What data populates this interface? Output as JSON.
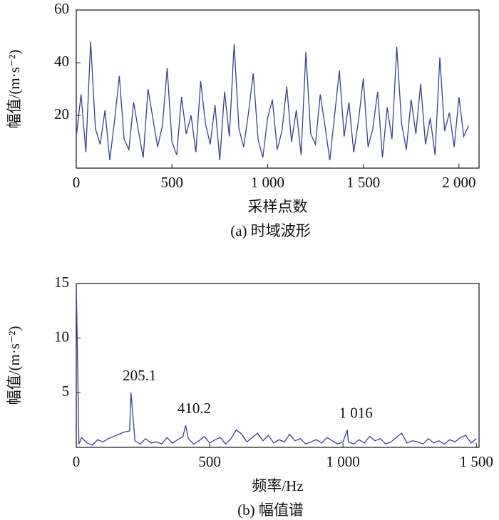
{
  "chart_data": [
    {
      "type": "line",
      "y_label": "幅值/(m·s⁻²)",
      "x_label": "采样点数",
      "caption": "(a) 时域波形",
      "x": [
        0,
        25,
        50,
        75,
        100,
        125,
        150,
        175,
        200,
        225,
        250,
        275,
        300,
        325,
        350,
        375,
        400,
        425,
        450,
        475,
        500,
        525,
        550,
        575,
        600,
        625,
        650,
        675,
        700,
        725,
        750,
        775,
        800,
        825,
        850,
        875,
        900,
        925,
        950,
        975,
        1000,
        1025,
        1050,
        1075,
        1100,
        1125,
        1150,
        1175,
        1200,
        1225,
        1250,
        1275,
        1300,
        1325,
        1350,
        1375,
        1400,
        1425,
        1450,
        1475,
        1500,
        1525,
        1550,
        1575,
        1600,
        1625,
        1650,
        1675,
        1700,
        1725,
        1750,
        1775,
        1800,
        1825,
        1850,
        1875,
        1900,
        1925,
        1950,
        1975,
        2000,
        2025,
        2050
      ],
      "series": [
        {
          "color": "#3b3f8f",
          "values": [
            12,
            28,
            6,
            48,
            15,
            9,
            22,
            3,
            18,
            35,
            11,
            7,
            25,
            14,
            4,
            30,
            19,
            8,
            16,
            38,
            10,
            5,
            27,
            13,
            20,
            6,
            33,
            17,
            9,
            24,
            3,
            29,
            12,
            47,
            15,
            8,
            21,
            36,
            11,
            4,
            19,
            26,
            7,
            14,
            31,
            10,
            22,
            5,
            44,
            13,
            9,
            28,
            16,
            3,
            20,
            37,
            12,
            25,
            6,
            18,
            34,
            8,
            15,
            29,
            4,
            23,
            11,
            46,
            17,
            7,
            26,
            13,
            32,
            9,
            19,
            5,
            42,
            14,
            21,
            8,
            27,
            12,
            16
          ]
        }
      ],
      "xlim": [
        0,
        2105
      ],
      "ylim": [
        0,
        60
      ],
      "xticks": [
        0,
        500,
        {
          "value": 1000,
          "label": "1 000"
        },
        {
          "value": 1500,
          "label": "1 500"
        },
        {
          "value": 2000,
          "label": "2 000"
        }
      ],
      "yticks": [
        20,
        40,
        60
      ]
    },
    {
      "type": "line",
      "y_label": "幅值/(m·s⁻²)",
      "x_label": "频率/Hz",
      "caption": "(b) 幅值谱",
      "x": [
        0,
        10,
        20,
        40,
        60,
        80,
        100,
        120,
        140,
        160,
        180,
        200,
        205.1,
        220,
        240,
        260,
        280,
        300,
        320,
        340,
        360,
        380,
        400,
        410.2,
        420,
        440,
        460,
        480,
        500,
        520,
        540,
        560,
        580,
        600,
        620,
        640,
        660,
        680,
        700,
        720,
        740,
        760,
        780,
        800,
        820,
        840,
        860,
        880,
        900,
        920,
        940,
        960,
        980,
        1000,
        1016,
        1020,
        1040,
        1060,
        1080,
        1100,
        1120,
        1140,
        1160,
        1180,
        1200,
        1220,
        1240,
        1260,
        1280,
        1300,
        1320,
        1340,
        1360,
        1380,
        1400,
        1420,
        1440,
        1460,
        1480,
        1500
      ],
      "series": [
        {
          "color": "#3b3f8f",
          "values": [
            15,
            0.3,
            0.9,
            0.4,
            0.2,
            0.7,
            0.5,
            0.8,
            1.0,
            1.2,
            1.4,
            1.5,
            5.0,
            0.6,
            0.3,
            0.8,
            0.4,
            0.5,
            0.3,
            0.9,
            0.4,
            0.7,
            1.0,
            2.0,
            0.8,
            0.3,
            0.6,
            1.0,
            0.4,
            0.7,
            0.9,
            0.3,
            0.8,
            1.6,
            1.2,
            0.5,
            0.9,
            1.3,
            0.6,
            1.1,
            0.4,
            0.7,
            0.5,
            1.2,
            0.6,
            0.8,
            0.3,
            0.5,
            0.7,
            0.4,
            0.9,
            0.6,
            0.3,
            0.5,
            1.6,
            0.5,
            0.3,
            0.7,
            0.4,
            1.0,
            0.6,
            0.8,
            0.3,
            0.5,
            0.9,
            1.3,
            0.4,
            0.6,
            0.5,
            0.3,
            0.8,
            0.4,
            0.6,
            0.3,
            0.7,
            0.5,
            0.9,
            1.1,
            0.4,
            0.8
          ]
        }
      ],
      "annotations": [
        {
          "value": 205.1,
          "label": "205.1"
        },
        {
          "value": 410.2,
          "label": "410.2"
        },
        {
          "value": 1016,
          "label": "1 016"
        }
      ],
      "xlim": [
        0,
        1510
      ],
      "ylim": [
        0,
        15
      ],
      "xticks": [
        0,
        500,
        {
          "value": 1000,
          "label": "1 000"
        },
        {
          "value": 1500,
          "label": "1 500"
        }
      ],
      "yticks": [
        5,
        10,
        15
      ]
    }
  ]
}
